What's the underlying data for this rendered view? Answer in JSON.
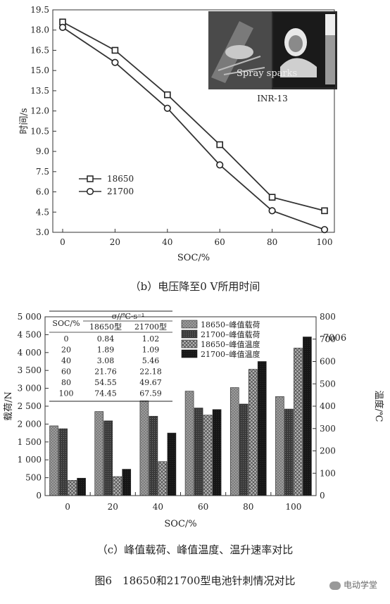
{
  "figure_caption": "图6　18650和21700型电池针刺情况对比",
  "watermark": "电动学堂",
  "chart_data": [
    {
      "type": "line",
      "caption": "（b）电压降至0 V所用时间",
      "x": [
        0,
        20,
        40,
        60,
        80,
        100
      ],
      "xlabel": "SOC/%",
      "ylabel": "时间/s",
      "ylim": [
        3.0,
        19.5
      ],
      "yticks": [
        "3.0",
        "4.5",
        "6.0",
        "7.5",
        "9.0",
        "10.5",
        "12.0",
        "13.5",
        "15.0",
        "16.5",
        "18.0",
        "19.5"
      ],
      "xticks": [
        "0",
        "20",
        "40",
        "60",
        "80",
        "100"
      ],
      "series": [
        {
          "name": "18650",
          "marker": "square",
          "values": [
            18.6,
            16.5,
            13.2,
            9.5,
            5.6,
            4.6
          ]
        },
        {
          "name": "21700",
          "marker": "circle",
          "values": [
            18.2,
            15.6,
            12.2,
            8.0,
            4.6,
            3.2
          ]
        }
      ],
      "legend": "lower-left",
      "inset_photo": {
        "overlay_text": "Spray sparks",
        "label": "INR-13"
      }
    },
    {
      "type": "bar",
      "caption": "（c）峰值载荷、峰值温度、温升速率对比",
      "categories": [
        "0",
        "20",
        "40",
        "60",
        "80",
        "100"
      ],
      "xlabel": "SOC/%",
      "ylabel_left": "载荷/N",
      "ylabel_right": "温度/℃",
      "ylim_left": [
        0,
        5000
      ],
      "ylim_right": [
        0,
        800
      ],
      "yticks_left": [
        "0",
        "500",
        "1 000",
        "1 500",
        "2 000",
        "2 500",
        "3 000",
        "3 500",
        "4 000",
        "4 500",
        "5 000"
      ],
      "yticks_right": [
        "0",
        "100",
        "200",
        "300",
        "400",
        "500",
        "600",
        "700",
        "800"
      ],
      "series": [
        {
          "name": "18650–峰值载荷",
          "axis": "left",
          "color": "#8a8a8a",
          "pattern": "dots",
          "values": [
            1950,
            2350,
            2650,
            2920,
            3020,
            2770
          ]
        },
        {
          "name": "21700–峰值载荷",
          "axis": "left",
          "color": "#3c3c3c",
          "pattern": "solid",
          "values": [
            1870,
            2090,
            2220,
            2450,
            2560,
            2420
          ]
        },
        {
          "name": "18650–峰值温度",
          "axis": "right",
          "color": "#9a9a9a",
          "pattern": "crosshatch",
          "values": [
            68,
            85,
            152,
            360,
            565,
            660
          ]
        },
        {
          "name": "21700–峰值温度",
          "axis": "right",
          "color": "#1a1a1a",
          "pattern": "solid",
          "values": [
            78,
            118,
            280,
            385,
            600,
            710
          ]
        }
      ],
      "legend": "top-right",
      "table": {
        "header_top": "σ//℃·s⁻¹",
        "col_head": "SOC/%",
        "columns": [
          "18650型",
          "21700型"
        ],
        "rows": [
          [
            "0",
            "0.84",
            "1.02"
          ],
          [
            "20",
            "1.89",
            "1.09"
          ],
          [
            "40",
            "3.08",
            "5.46"
          ],
          [
            "60",
            "21.76",
            "22.18"
          ],
          [
            "80",
            "54.55",
            "49.67"
          ],
          [
            "100",
            "74.45",
            "67.59"
          ]
        ]
      },
      "stray_text": "7006"
    }
  ]
}
